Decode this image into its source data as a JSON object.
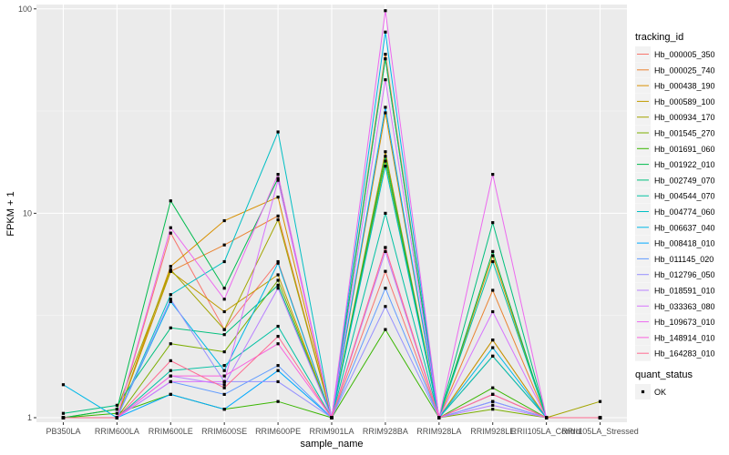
{
  "chart_data": {
    "type": "line",
    "xlabel": "sample_name",
    "ylabel": "FPKM + 1",
    "y_scale": "log10",
    "ylim": [
      0.95,
      105
    ],
    "y_ticks": [
      1,
      10,
      100
    ],
    "y_tick_labels": [
      "1",
      "10",
      "100"
    ],
    "grid": true,
    "categories": [
      "PB350LA",
      "RRIM600LA",
      "RRIM600LE",
      "RRIM600SE",
      "RRIM600PE",
      "RRIM901LA",
      "RRIM928BA",
      "RRIM928LA",
      "RRIM928LE",
      "RRII105LA_Control",
      "RRII105LA_Stressed"
    ],
    "legend": {
      "title": "tracking_id",
      "placement": "right"
    },
    "shape_legend": {
      "title": "quant_status",
      "items": [
        "OK"
      ]
    },
    "series": [
      {
        "name": "Hb_000005_350",
        "color": "#F8766D",
        "values": [
          1.0,
          1.0,
          8.0,
          2.7,
          5.8,
          1.0,
          5.2,
          1.0,
          2.4,
          1.0,
          1.0
        ]
      },
      {
        "name": "Hb_000025_740",
        "color": "#EA8331",
        "values": [
          1.0,
          1.0,
          5.2,
          7.0,
          9.7,
          1.0,
          60.0,
          1.0,
          4.2,
          1.0,
          1.0
        ]
      },
      {
        "name": "Hb_000438_190",
        "color": "#D89000",
        "values": [
          1.0,
          1.0,
          5.5,
          9.2,
          12.0,
          1.0,
          31.0,
          1.0,
          6.2,
          1.0,
          1.0
        ]
      },
      {
        "name": "Hb_000589_100",
        "color": "#C09B00",
        "values": [
          1.0,
          1.0,
          5.2,
          3.3,
          5.0,
          1.0,
          20.0,
          1.0,
          2.4,
          1.0,
          1.0
        ]
      },
      {
        "name": "Hb_000934_170",
        "color": "#A3A500",
        "values": [
          1.0,
          1.1,
          5.3,
          2.7,
          9.3,
          1.0,
          57.0,
          1.0,
          2.0,
          1.0,
          1.2
        ]
      },
      {
        "name": "Hb_001545_270",
        "color": "#7CAE00",
        "values": [
          1.0,
          1.0,
          2.3,
          2.1,
          4.7,
          1.0,
          18.0,
          1.0,
          1.1,
          1.0,
          1.0
        ]
      },
      {
        "name": "Hb_001691_060",
        "color": "#39B600",
        "values": [
          1.0,
          1.05,
          1.3,
          1.1,
          1.2,
          1.0,
          2.7,
          1.0,
          1.4,
          1.0,
          1.0
        ]
      },
      {
        "name": "Hb_001922_010",
        "color": "#00BB4E",
        "values": [
          1.0,
          1.1,
          11.5,
          4.3,
          14.8,
          1.0,
          19.0,
          1.0,
          6.5,
          1.0,
          1.0
        ]
      },
      {
        "name": "Hb_002749_070",
        "color": "#00BF7D",
        "values": [
          1.05,
          1.15,
          2.75,
          2.55,
          4.45,
          1.0,
          57.0,
          1.0,
          9.0,
          1.0,
          1.0
        ]
      },
      {
        "name": "Hb_004544_070",
        "color": "#00C1A3",
        "values": [
          1.0,
          1.0,
          1.7,
          1.8,
          2.8,
          1.0,
          10.0,
          1.0,
          5.8,
          1.0,
          1.0
        ]
      },
      {
        "name": "Hb_004774_060",
        "color": "#00BFC4",
        "values": [
          1.0,
          1.0,
          4.0,
          5.8,
          25.0,
          1.0,
          17.0,
          1.0,
          2.0,
          1.0,
          1.0
        ]
      },
      {
        "name": "Hb_006637_040",
        "color": "#00B8E7",
        "values": [
          1.45,
          1.0,
          3.7,
          1.7,
          5.7,
          1.0,
          77.0,
          1.0,
          2.2,
          1.0,
          1.0
        ]
      },
      {
        "name": "Hb_008418_010",
        "color": "#00A9FF",
        "values": [
          1.0,
          1.0,
          1.3,
          1.1,
          1.7,
          1.0,
          33.0,
          1.0,
          1.2,
          1.0,
          1.0
        ]
      },
      {
        "name": "Hb_011145_020",
        "color": "#619CFF",
        "values": [
          1.0,
          1.0,
          1.5,
          1.3,
          1.8,
          1.0,
          4.3,
          1.0,
          1.3,
          1.0,
          1.0
        ]
      },
      {
        "name": "Hb_012796_050",
        "color": "#9590FF",
        "values": [
          1.0,
          1.0,
          3.8,
          1.5,
          1.5,
          1.0,
          3.5,
          1.0,
          1.2,
          1.0,
          1.0
        ]
      },
      {
        "name": "Hb_018591_010",
        "color": "#B983FF",
        "values": [
          1.0,
          1.0,
          1.6,
          1.45,
          4.3,
          1.0,
          6.5,
          1.0,
          1.15,
          1.0,
          1.0
        ]
      },
      {
        "name": "Hb_033363_080",
        "color": "#D774FD",
        "values": [
          1.0,
          1.0,
          1.5,
          1.5,
          14.5,
          1.0,
          45.0,
          1.0,
          3.3,
          1.0,
          1.0
        ]
      },
      {
        "name": "Hb_109673_010",
        "color": "#EC69EF",
        "values": [
          1.0,
          1.0,
          8.5,
          3.8,
          15.5,
          1.0,
          98.0,
          1.0,
          15.5,
          1.0,
          1.0
        ]
      },
      {
        "name": "Hb_148914_010",
        "color": "#F962DD",
        "values": [
          1.0,
          1.0,
          1.6,
          1.6,
          2.3,
          1.0,
          6.8,
          1.0,
          1.3,
          1.0,
          1.0
        ]
      },
      {
        "name": "Hb_164283_010",
        "color": "#FF6C91",
        "values": [
          1.0,
          1.0,
          1.9,
          1.4,
          2.5,
          1.0,
          6.8,
          1.0,
          1.3,
          1.0,
          1.0
        ]
      }
    ]
  }
}
